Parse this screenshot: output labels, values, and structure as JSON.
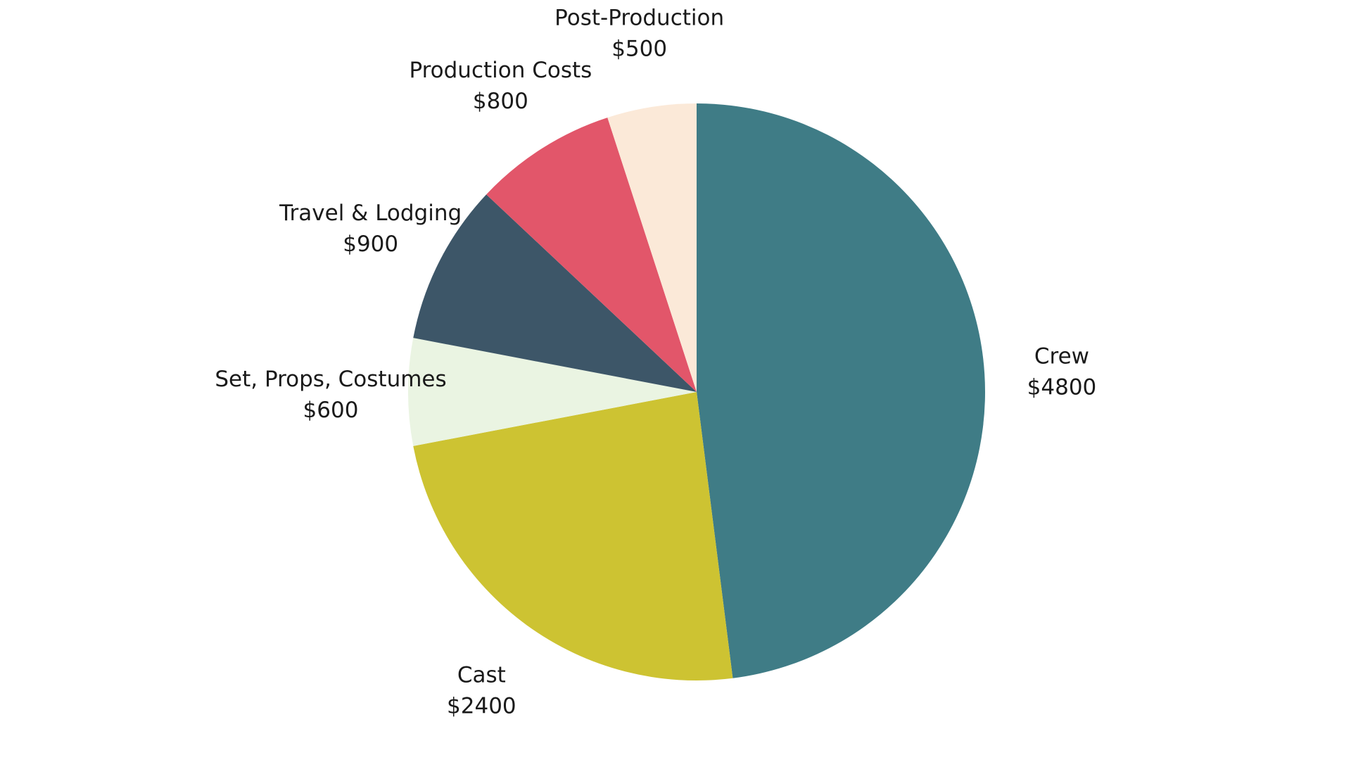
{
  "chart_data": {
    "type": "pie",
    "title": "",
    "start_angle_deg": 0,
    "direction": "clockwise",
    "slices": [
      {
        "label": "Crew",
        "value_label": "$4800",
        "value": 4800,
        "color": "#3f7c86"
      },
      {
        "label": "Cast",
        "value_label": "$2400",
        "value": 2400,
        "color": "#cdc332"
      },
      {
        "label": "Set, Props, Costumes",
        "value_label": "$600",
        "value": 600,
        "color": "#eaf4e2"
      },
      {
        "label": "Travel & Lodging",
        "value_label": "$900",
        "value": 900,
        "color": "#3d5668"
      },
      {
        "label": "Production Costs",
        "value_label": "$800",
        "value": 800,
        "color": "#e2566a"
      },
      {
        "label": "Post-Production",
        "value_label": "$500",
        "value": 500,
        "color": "#fbe9d8"
      }
    ]
  }
}
